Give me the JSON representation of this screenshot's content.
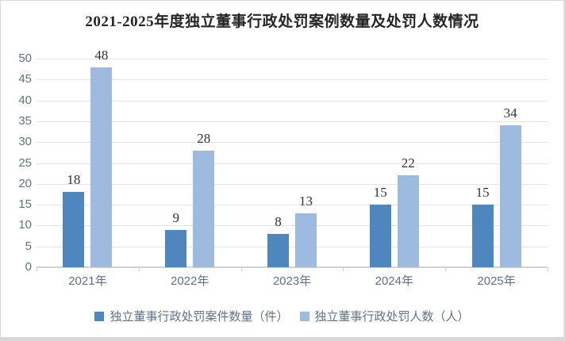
{
  "window": {
    "background": "#ffffff",
    "border_color": "#d9d9d9"
  },
  "chart_data": {
    "type": "bar",
    "title": "2021-2025年度独立董事行政处罚案例数量及处罚人数情况",
    "categories": [
      "2021年",
      "2022年",
      "2023年",
      "2024年",
      "2025年"
    ],
    "series": [
      {
        "name": "独立董事行政处罚案件数量（件）",
        "color": "#4e87bd",
        "values": [
          18,
          9,
          8,
          15,
          15
        ]
      },
      {
        "name": "独立董事行政处罚人数（人）",
        "color": "#9cbbdf",
        "values": [
          48,
          28,
          13,
          22,
          34
        ]
      }
    ],
    "y_axis": {
      "min": 0,
      "max": 50,
      "step": 5,
      "tick_labels": [
        "0",
        "5",
        "10",
        "15",
        "20",
        "25",
        "30",
        "35",
        "40",
        "45",
        "50"
      ]
    },
    "xlabel": "",
    "ylabel": "",
    "grid": true,
    "data_labels": true,
    "legend_position": "bottom",
    "colors": {
      "title_text": "#262626",
      "axis_text": "#5e7386",
      "data_label_text": "#333333",
      "gridline": "#e4e4e4",
      "axis_line": "#d2d2d2"
    }
  }
}
